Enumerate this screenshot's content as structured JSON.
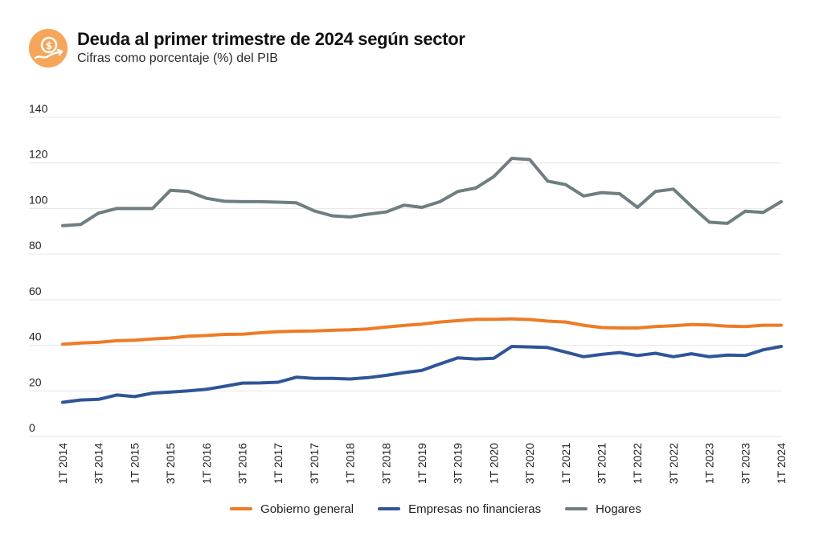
{
  "header": {
    "title": "Deuda al primer trimestre de 2024 según sector",
    "subtitle": "Cifras como porcentaje (%) del PIB",
    "logo_icon": "money-growth-icon"
  },
  "colors": {
    "gobierno": "#ee7b26",
    "empresas": "#2f5597",
    "hogares": "#6e7e81",
    "grid": "#e6e6e6",
    "logo": "#f5a65b"
  },
  "chart_data": {
    "type": "line",
    "title": "Deuda al primer trimestre de 2024 según sector",
    "subtitle": "Cifras como porcentaje (%) del PIB",
    "xlabel": "",
    "ylabel": "",
    "ylim": [
      0,
      140
    ],
    "yticks": [
      0,
      20,
      40,
      60,
      80,
      100,
      120,
      140
    ],
    "grid": true,
    "legend_position": "bottom",
    "x_tick_labels": [
      "1T 2014",
      "3T 2014",
      "1T 2015",
      "3T 2015",
      "1T 2016",
      "3T 2016",
      "1T 2017",
      "3T 2017",
      "1T 2018",
      "3T 2018",
      "1T 2019",
      "3T 2019",
      "1T 2020",
      "3T 2020",
      "1T 2021",
      "3T 2021",
      "1T 2022",
      "3T 2022",
      "1T 2023",
      "3T 2023",
      "1T 2024"
    ],
    "x": [
      "1T 2014",
      "2T 2014",
      "3T 2014",
      "4T 2014",
      "1T 2015",
      "2T 2015",
      "3T 2015",
      "4T 2015",
      "1T 2016",
      "2T 2016",
      "3T 2016",
      "4T 2016",
      "1T 2017",
      "2T 2017",
      "3T 2017",
      "4T 2017",
      "1T 2018",
      "2T 2018",
      "3T 2018",
      "4T 2018",
      "1T 2019",
      "2T 2019",
      "3T 2019",
      "4T 2019",
      "1T 2020",
      "2T 2020",
      "3T 2020",
      "4T 2020",
      "1T 2021",
      "2T 2021",
      "3T 2021",
      "4T 2021",
      "1T 2022",
      "2T 2022",
      "3T 2022",
      "4T 2022",
      "1T 2023",
      "2T 2023",
      "3T 2023",
      "4T 2023",
      "1T 2024"
    ],
    "series": [
      {
        "name": "Gobierno general",
        "color": "#ee7b26",
        "values": [
          40.5,
          41.0,
          41.3,
          42.0,
          42.2,
          42.8,
          43.2,
          44.0,
          44.3,
          44.8,
          44.9,
          45.5,
          46.0,
          46.2,
          46.3,
          46.6,
          46.8,
          47.2,
          48.0,
          48.7,
          49.3,
          50.2,
          50.8,
          51.4,
          51.4,
          51.6,
          51.3,
          50.6,
          50.2,
          48.8,
          47.8,
          47.6,
          47.6,
          48.2,
          48.6,
          49.1,
          48.9,
          48.4,
          48.2,
          48.8,
          48.8
        ]
      },
      {
        "name": "Empresas no financieras",
        "color": "#2f5597",
        "values": [
          15.0,
          16.0,
          16.3,
          18.2,
          17.5,
          19.0,
          19.5,
          20.0,
          20.7,
          22.0,
          23.4,
          23.5,
          23.8,
          26.0,
          25.5,
          25.5,
          25.2,
          25.8,
          26.8,
          28.0,
          29.0,
          31.8,
          34.5,
          34.0,
          34.3,
          39.5,
          39.3,
          39.0,
          37.0,
          35.0,
          36.0,
          36.8,
          35.5,
          36.5,
          35.0,
          36.3,
          35.0,
          35.7,
          35.5,
          38.0,
          39.5
        ]
      },
      {
        "name": "Hogares",
        "color": "#6e7e81",
        "values": [
          92.5,
          93.0,
          98.0,
          100.0,
          100.0,
          100.0,
          108.0,
          107.5,
          104.5,
          103.2,
          103.0,
          103.0,
          102.8,
          102.5,
          99.0,
          96.8,
          96.3,
          97.5,
          98.5,
          101.5,
          100.5,
          103.0,
          107.5,
          109.0,
          114.0,
          122.0,
          121.5,
          112.0,
          110.5,
          105.5,
          107.0,
          106.5,
          100.5,
          107.5,
          108.5,
          101.0,
          94.0,
          93.5,
          98.8,
          98.3,
          103.0
        ]
      }
    ]
  }
}
